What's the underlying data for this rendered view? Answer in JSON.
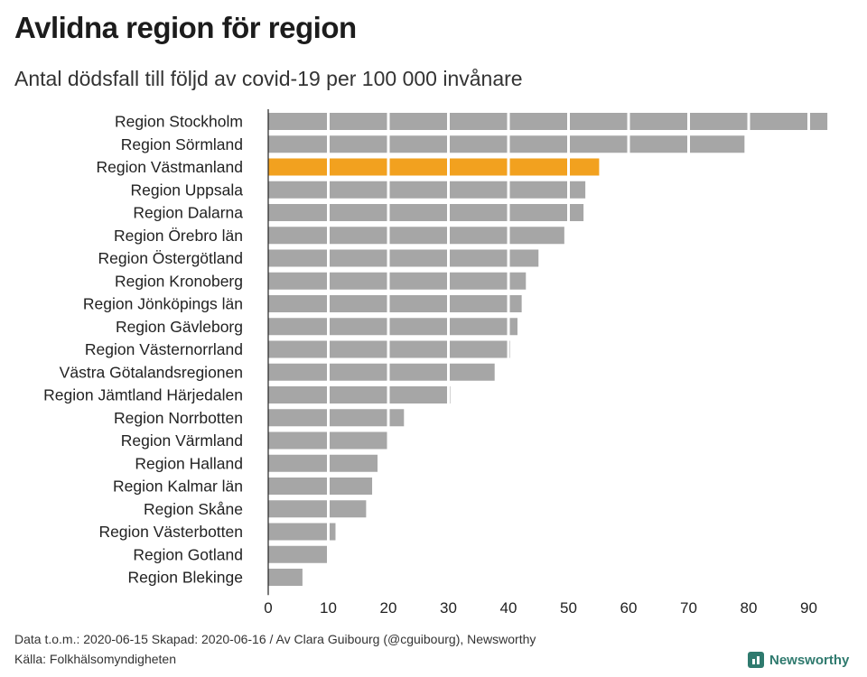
{
  "title": "Avlidna region för region",
  "subtitle": "Antal dödsfall till följd av covid-19 per 100 000 invånare",
  "footer": {
    "line1": "Data t.o.m.: 2020-06-15 Skapad: 2020-06-16 / Av Clara Guibourg (@cguibourg), Newsworthy",
    "line2": "Källa: Folkhälsomyndigheten"
  },
  "brand": "Newsworthy",
  "colors": {
    "bar": "#a6a6a6",
    "highlight": "#f2a11f",
    "gridline": "#ffffff",
    "axis": "#222222"
  },
  "chart_data": {
    "type": "bar",
    "orientation": "horizontal",
    "categories": [
      "Region Stockholm",
      "Region Sörmland",
      "Region Västmanland",
      "Region Uppsala",
      "Region Dalarna",
      "Region Örebro län",
      "Region Östergötland",
      "Region Kronoberg",
      "Region Jönköpings län",
      "Region Gävleborg",
      "Region Västernorrland",
      "Västra Götalandsregionen",
      "Region Jämtland Härjedalen",
      "Region Norrbotten",
      "Region Värmland",
      "Region Halland",
      "Region Kalmar län",
      "Region Skåne",
      "Region Västerbotten",
      "Region Gotland",
      "Region Blekinge"
    ],
    "values": [
      93.1,
      79.3,
      55.1,
      52.8,
      52.5,
      49.3,
      45.0,
      42.9,
      42.2,
      41.5,
      40.3,
      37.7,
      30.3,
      22.6,
      20.1,
      18.2,
      17.3,
      16.3,
      11.2,
      10.1,
      5.7
    ],
    "highlight": "Region Västmanland",
    "xlim": [
      0,
      93
    ],
    "xticks": [
      0,
      10,
      20,
      30,
      40,
      50,
      60,
      70,
      80,
      90
    ],
    "xlabel": "",
    "ylabel": "",
    "grid": true
  }
}
